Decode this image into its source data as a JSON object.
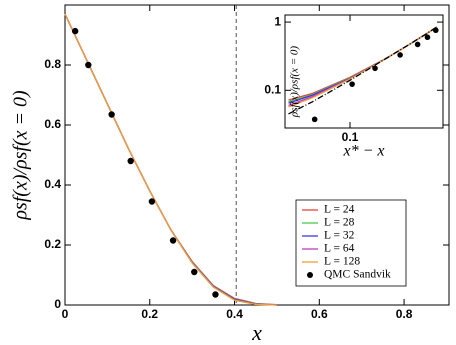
{
  "chart_data": [
    {
      "type": "line",
      "xlabel": "x",
      "ylabel": "ρsf(x)/ρsf(x = 0)",
      "xlim": [
        0,
        0.906
      ],
      "ylim": [
        0,
        1.0
      ],
      "xticks": [
        0,
        0.2,
        0.4,
        0.6,
        0.8
      ],
      "yticks": [
        0,
        0.2,
        0.4,
        0.6,
        0.8
      ],
      "vline": 0.404,
      "legend": "lower right",
      "x": [
        0,
        0.05,
        0.1,
        0.15,
        0.2,
        0.25,
        0.3,
        0.35,
        0.4,
        0.45,
        0.5
      ],
      "series": [
        {
          "name": "L = 24",
          "color": "#e8413c",
          "style": "line",
          "values": [
            0.97,
            0.82,
            0.67,
            0.52,
            0.38,
            0.25,
            0.145,
            0.065,
            0.022,
            0.005,
            0.001
          ]
        },
        {
          "name": "L = 28",
          "color": "#4cc94c",
          "style": "line",
          "values": [
            0.97,
            0.82,
            0.67,
            0.52,
            0.38,
            0.25,
            0.143,
            0.063,
            0.02,
            0.004,
            0.0
          ]
        },
        {
          "name": "L = 32",
          "color": "#3a3ae0",
          "style": "line",
          "values": [
            0.97,
            0.82,
            0.67,
            0.52,
            0.38,
            0.25,
            0.142,
            0.062,
            0.019,
            0.003,
            0.0
          ]
        },
        {
          "name": "L = 64",
          "color": "#c23cc2",
          "style": "line",
          "values": [
            0.97,
            0.82,
            0.67,
            0.52,
            0.38,
            0.25,
            0.14,
            0.06,
            0.017,
            0.002,
            0.0
          ]
        },
        {
          "name": "L = 128",
          "color": "#f0a030",
          "style": "line",
          "values": [
            0.97,
            0.82,
            0.67,
            0.52,
            0.38,
            0.25,
            0.14,
            0.06,
            0.016,
            0.002,
            0.0
          ]
        },
        {
          "name": "QMC Sandvik",
          "color": "#000000",
          "style": "dot",
          "x": [
            0.024,
            0.055,
            0.11,
            0.155,
            0.205,
            0.255,
            0.305,
            0.355
          ],
          "values": [
            0.913,
            0.8,
            0.635,
            0.48,
            0.345,
            0.215,
            0.11,
            0.035
          ]
        }
      ]
    },
    {
      "type": "line",
      "xlabel": "x* − x",
      "ylabel": "ρsf(x)/ρsf(x = 0)",
      "log": true,
      "xlim": [
        0.03,
        0.56
      ],
      "ylim": [
        0.028,
        1.27
      ],
      "xticks": [
        0.1
      ],
      "yticks": [
        0.1,
        1
      ],
      "x": [
        0.032,
        0.05,
        0.1,
        0.2,
        0.3,
        0.4,
        0.5
      ],
      "series": [
        {
          "color": "#e8413c",
          "style": "line",
          "values": [
            0.072,
            0.09,
            0.155,
            0.3,
            0.47,
            0.65,
            0.85
          ]
        },
        {
          "color": "#4cc94c",
          "style": "line",
          "values": [
            0.068,
            0.087,
            0.152,
            0.3,
            0.47,
            0.65,
            0.85
          ]
        },
        {
          "color": "#3a3ae0",
          "style": "line",
          "values": [
            0.065,
            0.085,
            0.15,
            0.3,
            0.47,
            0.65,
            0.85
          ]
        },
        {
          "color": "#c23cc2",
          "style": "line",
          "values": [
            0.06,
            0.081,
            0.148,
            0.3,
            0.47,
            0.65,
            0.85
          ]
        },
        {
          "color": "#f0a030",
          "style": "line",
          "values": [
            0.057,
            0.078,
            0.146,
            0.3,
            0.47,
            0.65,
            0.85
          ]
        },
        {
          "color": "#000000",
          "style": "dash",
          "values": [
            0.045,
            0.068,
            0.14,
            0.3,
            0.47,
            0.65,
            0.85
          ]
        },
        {
          "color": "#000000",
          "style": "dot",
          "x": [
            0.052,
            0.104,
            0.159,
            0.253,
            0.35,
            0.42,
            0.49
          ],
          "values": [
            0.0375,
            0.123,
            0.21,
            0.33,
            0.47,
            0.6,
            0.76
          ]
        }
      ]
    }
  ]
}
